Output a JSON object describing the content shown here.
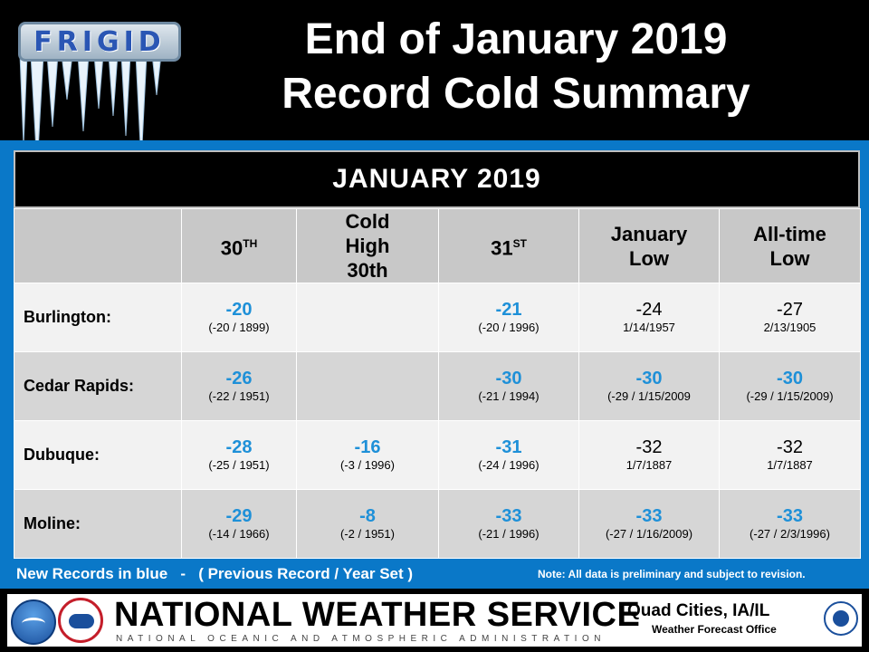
{
  "logo": {
    "text": "FRIGID"
  },
  "title": {
    "line1": "End of January 2019",
    "line2": "Record Cold Summary"
  },
  "table": {
    "month_header": "JANUARY 2019",
    "columns": [
      {
        "text": "30",
        "sup": "TH"
      },
      {
        "text": "Cold High 30th"
      },
      {
        "text": "31",
        "sup": "ST"
      },
      {
        "text": "January Low"
      },
      {
        "text": "All-time Low"
      }
    ],
    "rows": [
      {
        "site": "Burlington:",
        "cells": [
          {
            "value": "-20",
            "detail": "(-20 / 1899)",
            "new_record": true
          },
          {
            "value": "",
            "detail": "",
            "new_record": false
          },
          {
            "value": "-21",
            "detail": "(-20 / 1996)",
            "new_record": true
          },
          {
            "value": "-24",
            "detail": "1/14/1957",
            "new_record": false
          },
          {
            "value": "-27",
            "detail": "2/13/1905",
            "new_record": false
          }
        ]
      },
      {
        "site": "Cedar Rapids:",
        "cells": [
          {
            "value": "-26",
            "detail": "(-22 / 1951)",
            "new_record": true
          },
          {
            "value": "",
            "detail": "",
            "new_record": false
          },
          {
            "value": "-30",
            "detail": "(-21 / 1994)",
            "new_record": true
          },
          {
            "value": "-30",
            "detail": "(-29 / 1/15/2009",
            "new_record": true
          },
          {
            "value": "-30",
            "detail": "(-29 / 1/15/2009)",
            "new_record": true
          }
        ]
      },
      {
        "site": "Dubuque:",
        "cells": [
          {
            "value": "-28",
            "detail": "(-25 / 1951)",
            "new_record": true
          },
          {
            "value": "-16",
            "detail": "(-3 / 1996)",
            "new_record": true
          },
          {
            "value": "-31",
            "detail": "(-24 / 1996)",
            "new_record": true
          },
          {
            "value": "-32",
            "detail": "1/7/1887",
            "new_record": false
          },
          {
            "value": "-32",
            "detail": "1/7/1887",
            "new_record": false
          }
        ]
      },
      {
        "site": "Moline:",
        "cells": [
          {
            "value": "-29",
            "detail": "(-14 / 1966)",
            "new_record": true
          },
          {
            "value": "-8",
            "detail": "(-2 / 1951)",
            "new_record": true
          },
          {
            "value": "-33",
            "detail": "(-21 / 1996)",
            "new_record": true
          },
          {
            "value": "-33",
            "detail": "(-27 / 1/16/2009)",
            "new_record": true
          },
          {
            "value": "-33",
            "detail": "(-27 / 2/3/1996)",
            "new_record": true
          }
        ]
      }
    ]
  },
  "legend": "New Records in blue   -   ( Previous Record / Year Set )",
  "note": "Note: All data is preliminary and subject to revision.",
  "banner": {
    "org": "NATIONAL WEATHER SERVICE",
    "org_sub": "NATIONAL OCEANIC AND ATMOSPHERIC ADMINISTRATION",
    "office": "Quad Cities, IA/IL",
    "office_sub": "Weather Forecast Office"
  },
  "colors": {
    "new_record": "#1e90d8",
    "background": "#0a78c8",
    "header_bg": "#000000"
  },
  "icons": [
    "icicle-frigid-logo",
    "noaa-logo",
    "nws-logo",
    "doc-logo"
  ]
}
